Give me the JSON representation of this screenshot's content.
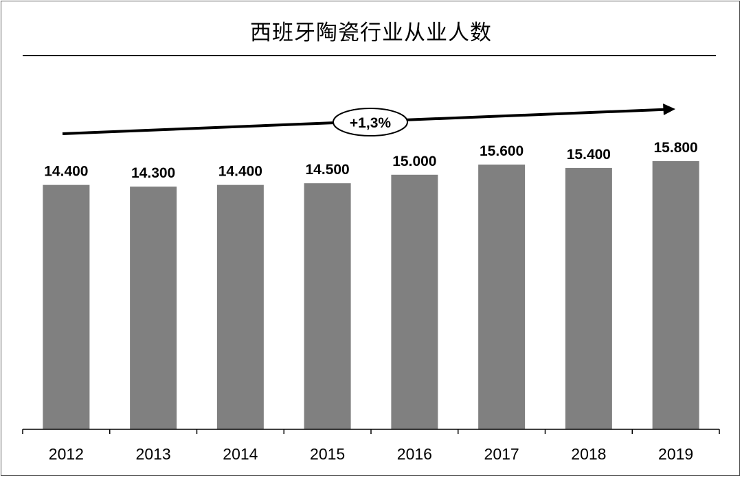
{
  "chart_data": {
    "type": "bar",
    "title": "西班牙陶瓷行业从业人数",
    "categories": [
      "2012",
      "2013",
      "2014",
      "2015",
      "2016",
      "2017",
      "2018",
      "2019"
    ],
    "values": [
      14400,
      14300,
      14400,
      14500,
      15000,
      15600,
      15400,
      15800
    ],
    "value_labels": [
      "14.400",
      "14.300",
      "14.400",
      "14.500",
      "15.000",
      "15.600",
      "15.400",
      "15.800"
    ],
    "annotation": "+1,3%",
    "xlabel": "",
    "ylabel": "",
    "ylim": [
      0,
      15800
    ],
    "grid": false,
    "colors": {
      "bar": "#808080",
      "text": "#000000",
      "axis": "#000000"
    }
  }
}
